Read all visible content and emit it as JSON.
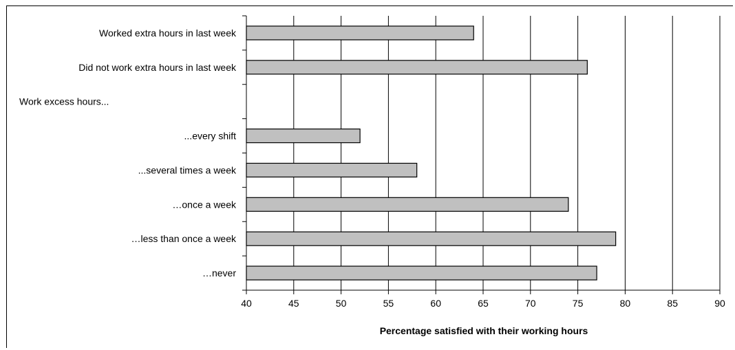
{
  "chart_data": {
    "type": "bar",
    "orientation": "horizontal",
    "title": "",
    "xlabel": "Percentage satisfied with their working hours",
    "ylabel": "",
    "xlim": [
      40,
      90
    ],
    "xticks": [
      40,
      45,
      50,
      55,
      60,
      65,
      70,
      75,
      80,
      85,
      90
    ],
    "grid": "vertical",
    "categories": [
      "Worked extra hours in last week",
      "Did not work extra hours in last week",
      "Work excess hours...",
      "...every shift",
      "...several times a week",
      "…once a week",
      "…less than once a week",
      "…never"
    ],
    "values": [
      64,
      76,
      null,
      52,
      58,
      74,
      79,
      77
    ],
    "colors": {
      "bar_fill": "#c0c0c0",
      "bar_stroke": "#000000",
      "grid": "#000000"
    }
  }
}
